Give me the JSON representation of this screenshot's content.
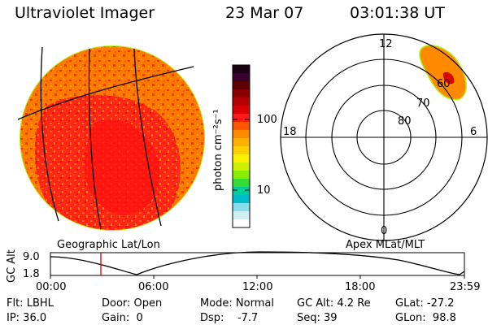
{
  "header": {
    "instrument": "Ultraviolet Imager",
    "date": "23 Mar 07",
    "time": "03:01:38 UT"
  },
  "colorbar": {
    "label": "photon cm⁻²s⁻¹",
    "ticks": [
      "100",
      "10"
    ],
    "palette": [
      "#1a0010",
      "#3a0030",
      "#5c0000",
      "#8a0000",
      "#b40000",
      "#d80000",
      "#ff1a1a",
      "#ff5500",
      "#ff8a00",
      "#ffb000",
      "#ffd000",
      "#ffef00",
      "#ccf000",
      "#88ee00",
      "#33dd33",
      "#00cc99",
      "#00bbcc",
      "#88ddee",
      "#cfeff5",
      "#ffffff"
    ],
    "min": 2,
    "max": 1000,
    "scale": "log"
  },
  "left_panel": {
    "label": "Geographic Lat/Lon"
  },
  "right_panel": {
    "label": "Apex MLat/MLT",
    "mlt_labels": {
      "top": "12",
      "left": "18",
      "right": "6",
      "bottom": "0"
    },
    "mlat_labels": [
      "60",
      "70",
      "80"
    ]
  },
  "altitude_plot": {
    "ylabel": "GC Alt",
    "yticks": [
      "9.0",
      "1.8"
    ],
    "xticks": [
      "00:00",
      "06:00",
      "12:00",
      "18:00",
      "23:59"
    ],
    "marker_time": "03:01"
  },
  "info": {
    "flt": "Flt: LBHL",
    "door": "Door: Open",
    "mode": "Mode: Normal",
    "gc_alt": "GC Alt: 4.2 Re",
    "glat": "GLat: -27.2",
    "ip": "IP: 36.0",
    "gain": "Gain:  0",
    "dsp": "Dsp:    -7.7",
    "seq": "Seq: 39",
    "glon": "GLon:  98.8"
  }
}
